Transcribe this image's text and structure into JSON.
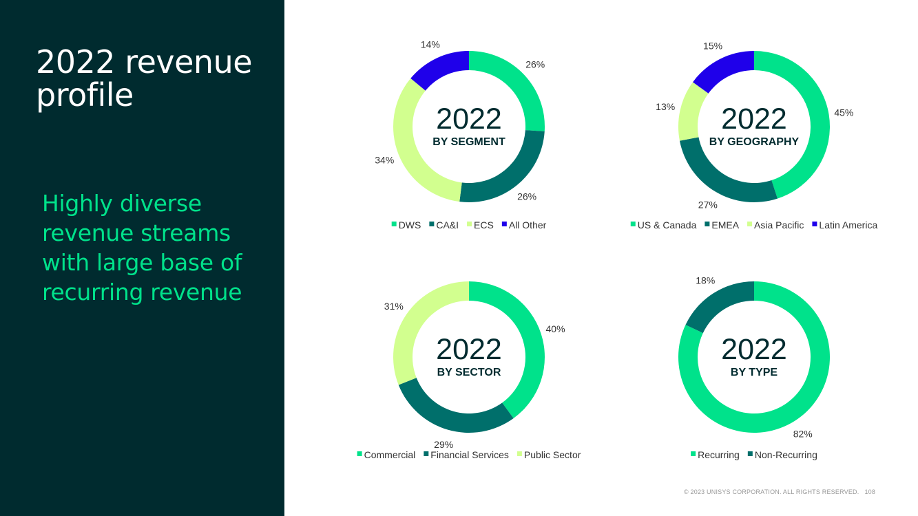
{
  "slide": {
    "title": "2022 revenue profile",
    "subtitle": "Highly diverse revenue streams with large base of recurring revenue",
    "footer": "© 2023 UNISYS CORPORATION. ALL RIGHTS RESERVED.",
    "page_number": "108"
  },
  "colors": {
    "panel": "#002b2f",
    "title_text": "#ffffff",
    "subtitle_text": "#00e28b",
    "center_text": "#002b2f",
    "label_text": "#333333"
  },
  "chart_data": [
    {
      "type": "pie",
      "id": "segment",
      "center_year": "2022",
      "center_label": "BY SEGMENT",
      "labels": [
        "DWS",
        "CA&I",
        "ECS",
        "All Other"
      ],
      "values": [
        26,
        26,
        34,
        14
      ],
      "value_labels": [
        "26%",
        "26%",
        "34%",
        "14%"
      ],
      "colors": [
        "#00e28b",
        "#006f6b",
        "#d2ff8f",
        "#1f00ea"
      ]
    },
    {
      "type": "pie",
      "id": "geography",
      "center_year": "2022",
      "center_label": "BY GEOGRAPHY",
      "labels": [
        "US & Canada",
        "EMEA",
        "Asia Pacific",
        "Latin America"
      ],
      "values": [
        45,
        27,
        13,
        15
      ],
      "value_labels": [
        "45%",
        "27%",
        "13%",
        "15%"
      ],
      "colors": [
        "#00e28b",
        "#006f6b",
        "#d2ff8f",
        "#1f00ea"
      ]
    },
    {
      "type": "pie",
      "id": "sector",
      "center_year": "2022",
      "center_label": "BY SECTOR",
      "labels": [
        "Commercial",
        "Financial Services",
        "Public Sector"
      ],
      "values": [
        40,
        29,
        31
      ],
      "value_labels": [
        "40%",
        "29%",
        "31%"
      ],
      "colors": [
        "#00e28b",
        "#006f6b",
        "#d2ff8f"
      ]
    },
    {
      "type": "pie",
      "id": "type",
      "center_year": "2022",
      "center_label": "BY TYPE",
      "labels": [
        "Recurring",
        "Non-Recurring"
      ],
      "values": [
        82,
        18
      ],
      "value_labels": [
        "82%",
        "18%"
      ],
      "colors": [
        "#00e28b",
        "#006f6b"
      ]
    }
  ]
}
